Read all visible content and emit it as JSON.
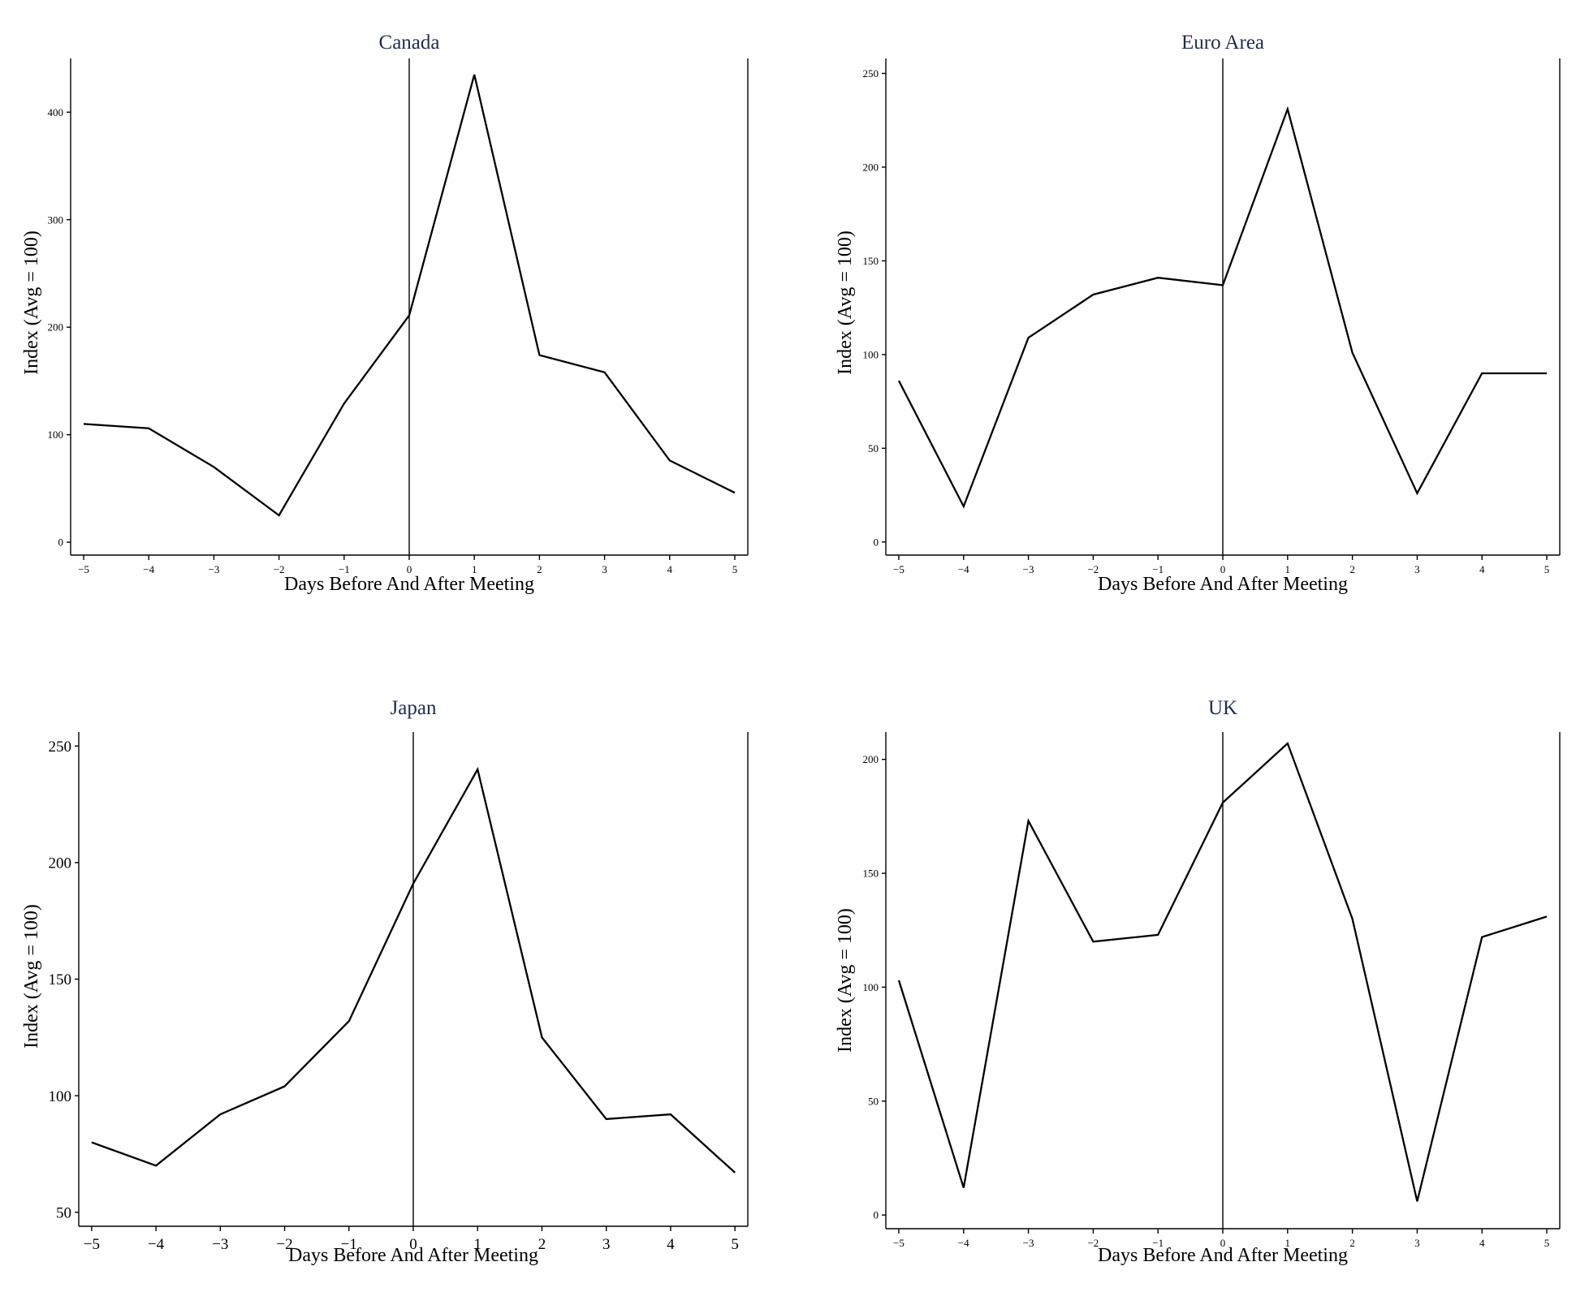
{
  "chart_data": [
    {
      "type": "line",
      "title": "Canada",
      "xlabel": "Days Before And After Meeting",
      "ylabel": "Index (Avg = 100)",
      "x": [
        -5,
        -4,
        -3,
        -2,
        -1,
        0,
        1,
        2,
        3,
        4,
        5
      ],
      "series": [
        {
          "values": [
            110,
            106,
            70,
            25,
            129,
            211,
            435,
            174,
            158,
            76,
            46
          ]
        }
      ],
      "xticks": [
        "−5",
        "−4",
        "−3",
        "−2",
        "−1",
        "0",
        "1",
        "2",
        "3",
        "4",
        "5"
      ],
      "yticks": [
        0,
        100,
        200,
        300,
        400
      ],
      "xlim": [
        -5.2,
        5.2
      ],
      "ylim": [
        -12,
        450
      ],
      "reference_line_x": 0,
      "grid": false
    },
    {
      "type": "line",
      "title": "Euro Area",
      "xlabel": "Days Before And After Meeting",
      "ylabel": "Index (Avg = 100)",
      "x": [
        -5,
        -4,
        -3,
        -2,
        -1,
        0,
        1,
        2,
        3,
        4,
        5
      ],
      "series": [
        {
          "values": [
            86,
            19,
            109,
            132,
            141,
            137,
            231,
            101,
            26,
            90,
            90
          ]
        }
      ],
      "xticks": [
        "−5",
        "−4",
        "−3",
        "−2",
        "−1",
        "0",
        "1",
        "2",
        "3",
        "4",
        "5"
      ],
      "yticks": [
        0,
        50,
        100,
        150,
        200,
        250
      ],
      "xlim": [
        -5.2,
        5.2
      ],
      "ylim": [
        -7,
        258
      ],
      "reference_line_x": 0,
      "grid": false
    },
    {
      "type": "line",
      "title": "Japan",
      "xlabel": "Days Before And After Meeting",
      "ylabel": "Index (Avg = 100)",
      "x": [
        -5,
        -4,
        -3,
        -2,
        -1,
        0,
        1,
        2,
        3,
        4,
        5
      ],
      "series": [
        {
          "values": [
            80,
            70,
            92,
            104,
            132,
            191,
            240,
            125,
            90,
            92,
            67
          ]
        }
      ],
      "xticks": [
        "−5",
        "−4",
        "−3",
        "−2",
        "−1",
        "0",
        "1",
        "2",
        "3",
        "4",
        "5"
      ],
      "yticks": [
        50,
        100,
        150,
        200,
        250
      ],
      "xlim": [
        -5.2,
        5.2
      ],
      "ylim": [
        44,
        256
      ],
      "reference_line_x": 0,
      "grid": false
    },
    {
      "type": "line",
      "title": "UK",
      "xlabel": "Days Before And After Meeting",
      "ylabel": "Index (Avg = 100)",
      "x": [
        -5,
        -4,
        -3,
        -2,
        -1,
        0,
        1,
        2,
        3,
        4,
        5
      ],
      "series": [
        {
          "values": [
            103,
            12,
            173,
            120,
            123,
            181,
            207,
            130,
            6,
            122,
            131
          ]
        }
      ],
      "xticks": [
        "−5",
        "−4",
        "−3",
        "−2",
        "−1",
        "0",
        "1",
        "2",
        "3",
        "4",
        "5"
      ],
      "yticks": [
        0,
        50,
        100,
        150,
        200
      ],
      "xlim": [
        -5.2,
        5.2
      ],
      "ylim": [
        -6,
        212
      ],
      "reference_line_x": 0,
      "grid": false
    }
  ]
}
